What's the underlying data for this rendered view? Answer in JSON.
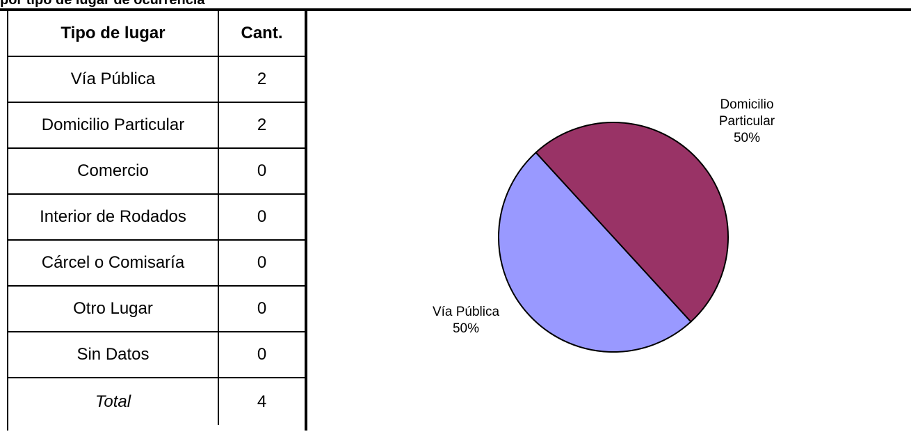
{
  "title": "por tipo de lugar de ocurrencia",
  "table": {
    "headers": [
      "Tipo de lugar",
      "Cant."
    ],
    "rows": [
      [
        "Vía Pública",
        "2"
      ],
      [
        "Domicilio Particular",
        "2"
      ],
      [
        "Comercio",
        "0"
      ],
      [
        "Interior de Rodados",
        "0"
      ],
      [
        "Cárcel o Comisaría",
        "0"
      ],
      [
        "Otro Lugar",
        "0"
      ],
      [
        "Sin Datos",
        "0"
      ]
    ],
    "total": [
      "Total",
      "4"
    ]
  },
  "chart_data": {
    "type": "pie",
    "title": "",
    "slices": [
      {
        "label_lines": [
          "Domicilio",
          "Particular"
        ],
        "value": 2,
        "percent_label": "50%",
        "color": "#993366"
      },
      {
        "label_lines": [
          "Vía Pública"
        ],
        "value": 2,
        "percent_label": "50%",
        "color": "#9999FF"
      }
    ]
  }
}
